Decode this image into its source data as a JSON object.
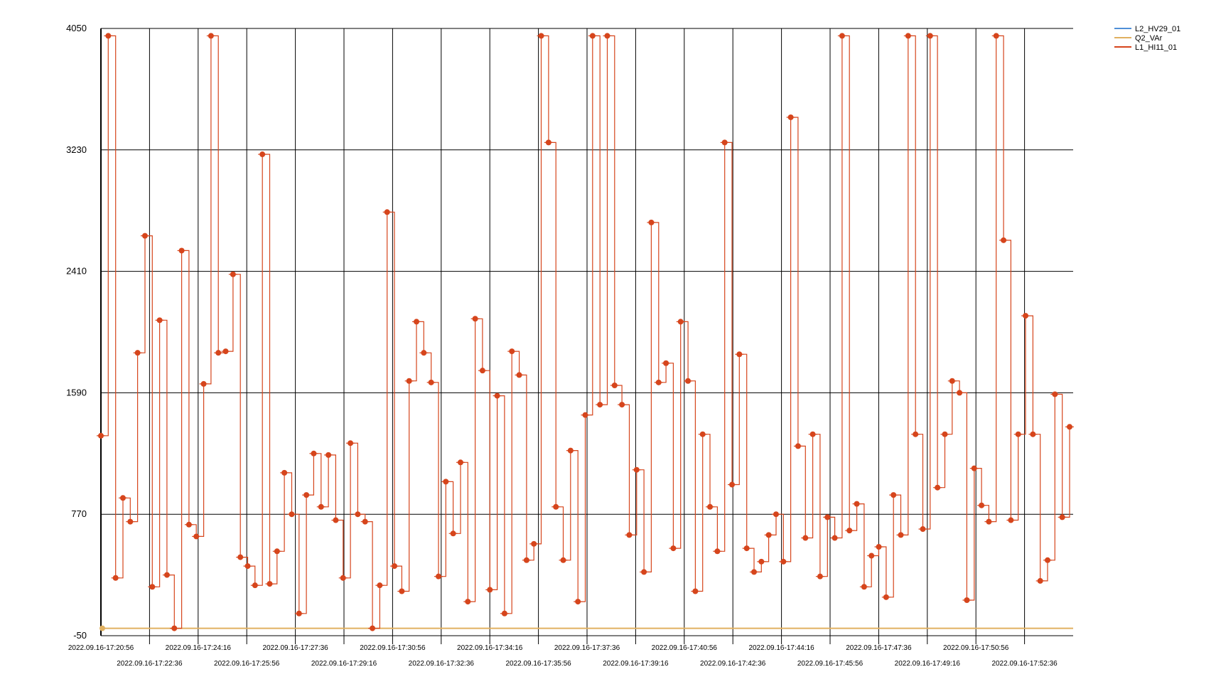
{
  "chart_data": {
    "type": "line",
    "title": "",
    "xlabel": "",
    "ylabel": "",
    "ylim": [
      -50,
      4050
    ],
    "y_ticks": [
      "4050",
      "3230",
      "2410",
      "1590",
      "770",
      "-50"
    ],
    "x_tick_labels": [
      "2022.09.16-17:20:56",
      "2022.09.16-17:22:36",
      "2022.09.16-17:24:16",
      "2022.09.16-17:25:56",
      "2022.09.16-17:27:36",
      "2022.09.16-17:29:16",
      "2022.09.16-17:30:56",
      "2022.09.16-17:32:36",
      "2022.09.16-17:34:16",
      "2022.09.16-17:35:56",
      "2022.09.16-17:37:36",
      "2022.09.16-17:39:16",
      "2022.09.16-17:40:56",
      "2022.09.16-17:42:36",
      "2022.09.16-17:44:16",
      "2022.09.16-17:45:56",
      "2022.09.16-17:47:36",
      "2022.09.16-17:49:16",
      "2022.09.16-17:50:56",
      "2022.09.16-17:52:36"
    ],
    "grid": true,
    "legend_position": "top-right",
    "series": [
      {
        "name": "L2_HV29_01",
        "color": "#4f8fd8",
        "values": []
      },
      {
        "name": "Q2_VAr",
        "color": "#e0b060",
        "values": [
          0,
          0
        ]
      },
      {
        "name": "L1_HI11_01",
        "color": "#d6451c",
        "values": [
          1300,
          4000,
          340,
          880,
          720,
          1860,
          2650,
          280,
          2080,
          360,
          0,
          2550,
          700,
          620,
          1650,
          4000,
          1860,
          1870,
          2390,
          480,
          420,
          290,
          3200,
          300,
          520,
          1050,
          770,
          100,
          900,
          1180,
          820,
          1170,
          730,
          340,
          1250,
          770,
          720,
          0,
          290,
          2810,
          420,
          250,
          1670,
          2070,
          1860,
          1660,
          350,
          990,
          640,
          1120,
          180,
          2090,
          1740,
          260,
          1570,
          100,
          1870,
          1710,
          460,
          570,
          4000,
          3280,
          820,
          460,
          1200,
          180,
          1440,
          4000,
          1510,
          4000,
          1640,
          1510,
          630,
          1070,
          380,
          2740,
          1660,
          1790,
          540,
          2070,
          1670,
          250,
          1310,
          820,
          520,
          3280,
          970,
          1850,
          540,
          380,
          450,
          630,
          770,
          450,
          3450,
          1230,
          610,
          1310,
          350,
          750,
          610,
          4000,
          660,
          840,
          280,
          490,
          550,
          210,
          900,
          630,
          4000,
          1310,
          670,
          4000,
          950,
          1310,
          1670,
          1590,
          190,
          1080,
          830,
          720,
          4000,
          2620,
          730,
          1310,
          2110,
          1310,
          320,
          460,
          1580,
          750,
          1360
        ]
      }
    ]
  }
}
